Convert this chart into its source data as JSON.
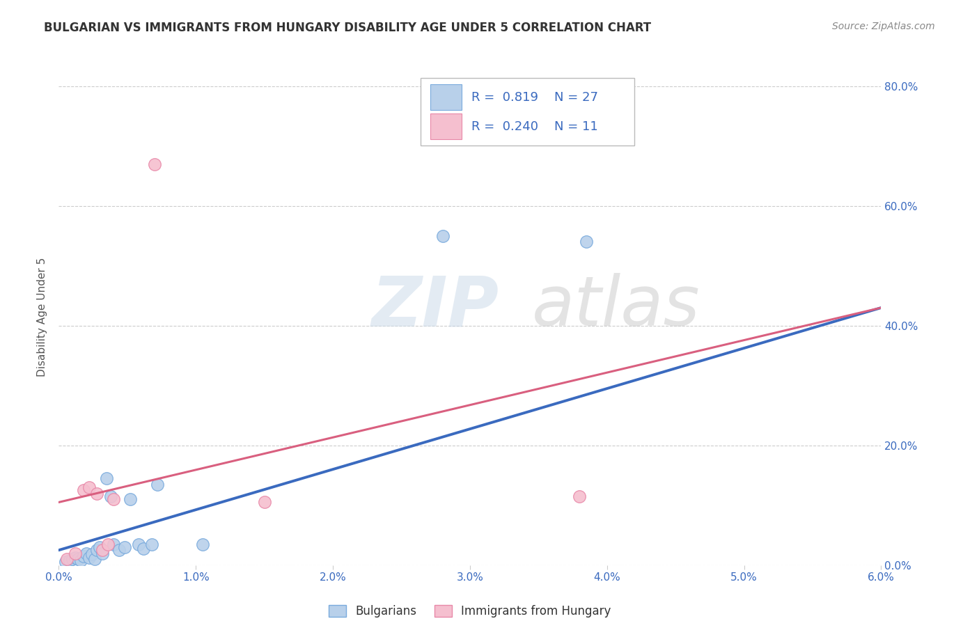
{
  "title": "BULGARIAN VS IMMIGRANTS FROM HUNGARY DISABILITY AGE UNDER 5 CORRELATION CHART",
  "source": "Source: ZipAtlas.com",
  "ylabel": "Disability Age Under 5",
  "xlim": [
    0.0,
    6.0
  ],
  "ylim": [
    0.0,
    83.0
  ],
  "x_ticks": [
    0.0,
    1.0,
    2.0,
    3.0,
    4.0,
    5.0,
    6.0
  ],
  "y_ticks": [
    0.0,
    20.0,
    40.0,
    60.0,
    80.0
  ],
  "blue_R": "0.819",
  "blue_N": "27",
  "pink_R": "0.240",
  "pink_N": "11",
  "blue_fill": "#b8d0ea",
  "blue_edge": "#7aabdd",
  "pink_fill": "#f5bfcf",
  "pink_edge": "#e888a8",
  "blue_line_color": "#3a6abf",
  "pink_line_color": "#d95f7f",
  "legend_label_blue": "Bulgarians",
  "legend_label_pink": "Immigrants from Hungary",
  "background_color": "#ffffff",
  "watermark_zip": "ZIP",
  "watermark_atlas": "atlas",
  "grid_color": "#cccccc",
  "title_fontsize": 12,
  "axis_label_fontsize": 11,
  "tick_fontsize": 11,
  "blue_scatter_x": [
    0.05,
    0.08,
    0.1,
    0.12,
    0.14,
    0.16,
    0.18,
    0.2,
    0.22,
    0.24,
    0.26,
    0.28,
    0.3,
    0.32,
    0.35,
    0.38,
    0.4,
    0.44,
    0.48,
    0.52,
    0.58,
    0.62,
    0.68,
    0.72,
    1.05,
    2.8,
    3.85
  ],
  "blue_scatter_y": [
    0.5,
    0.8,
    1.0,
    1.2,
    1.0,
    0.8,
    1.5,
    2.0,
    1.2,
    1.8,
    1.0,
    2.5,
    3.0,
    2.0,
    14.5,
    11.5,
    3.5,
    2.5,
    3.0,
    11.0,
    3.5,
    2.8,
    3.5,
    13.5,
    3.5,
    55.0,
    54.0
  ],
  "pink_scatter_x": [
    0.06,
    0.12,
    0.18,
    0.22,
    0.28,
    0.32,
    0.36,
    0.4,
    0.7,
    1.5,
    3.8
  ],
  "pink_scatter_y": [
    1.0,
    2.0,
    12.5,
    13.0,
    12.0,
    2.5,
    3.5,
    11.0,
    67.0,
    10.5,
    11.5
  ],
  "blue_trend_x0": 0.0,
  "blue_trend_y0": 2.5,
  "blue_trend_x1": 6.0,
  "blue_trend_y1": 43.0,
  "pink_trend_x0": 0.0,
  "pink_trend_y0": 10.5,
  "pink_trend_x1": 6.0,
  "pink_trend_y1": 43.0
}
